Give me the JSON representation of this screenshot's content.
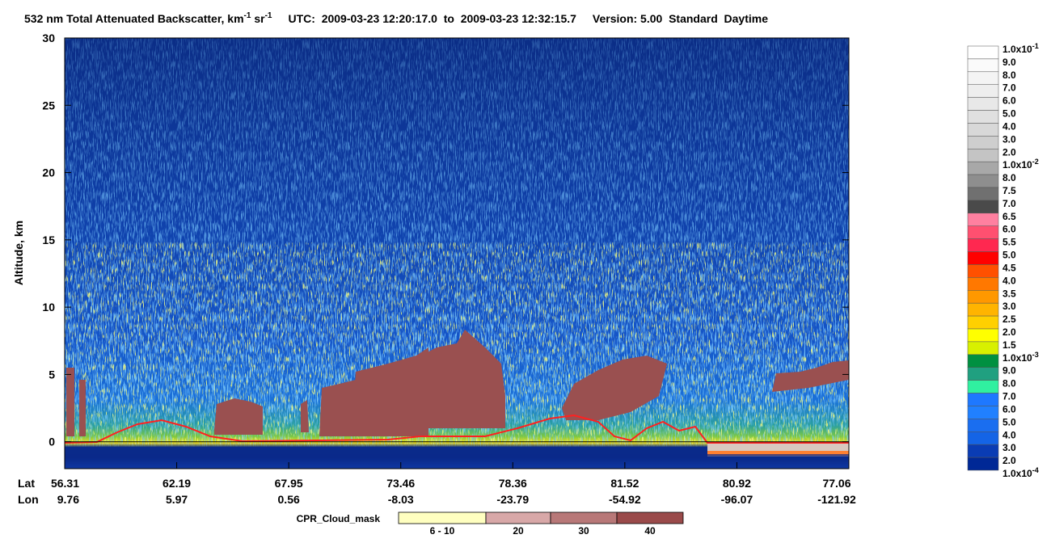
{
  "chart_data": {
    "type": "curtain",
    "title": {
      "text": "532 nm Total Attenuated Backscatter, km",
      "exp1": "-1",
      "unit2": "sr",
      "exp2": "-1"
    },
    "time_range": "UTC:  2009-03-23 12:20:17.0  to  2009-03-23 12:32:15.7",
    "version": "Version: 5.00  Standard  Daytime",
    "ylabel": "Altitude, km",
    "ylim": [
      -2,
      30
    ],
    "yticks": [
      0,
      5,
      10,
      15,
      20,
      25,
      30
    ],
    "lat_label": "Lat",
    "lon_label": "Lon",
    "lat": [
      56.31,
      62.19,
      67.95,
      73.46,
      78.36,
      81.52,
      80.92,
      77.06
    ],
    "lon": [
      9.76,
      5.97,
      0.56,
      -8.03,
      -23.79,
      -54.92,
      -96.07,
      -121.92
    ],
    "colorbar": {
      "labels": [
        {
          "label": "1.0x10",
          "exp": "-1"
        },
        {
          "label": "9.0"
        },
        {
          "label": "8.0"
        },
        {
          "label": "7.0"
        },
        {
          "label": "6.0"
        },
        {
          "label": "5.0"
        },
        {
          "label": "4.0"
        },
        {
          "label": "3.0"
        },
        {
          "label": "2.0"
        },
        {
          "label": "1.0x10",
          "exp": "-2"
        },
        {
          "label": "8.0"
        },
        {
          "label": "7.5"
        },
        {
          "label": "7.0"
        },
        {
          "label": "6.5"
        },
        {
          "label": "6.0"
        },
        {
          "label": "5.5"
        },
        {
          "label": "5.0"
        },
        {
          "label": "4.5"
        },
        {
          "label": "4.0"
        },
        {
          "label": "3.5"
        },
        {
          "label": "3.0"
        },
        {
          "label": "2.5"
        },
        {
          "label": "2.0"
        },
        {
          "label": "1.5"
        },
        {
          "label": "1.0x10",
          "exp": "-3"
        },
        {
          "label": "9.0"
        },
        {
          "label": "8.0"
        },
        {
          "label": "7.0"
        },
        {
          "label": "6.0"
        },
        {
          "label": "5.0"
        },
        {
          "label": "4.0"
        },
        {
          "label": "3.0"
        },
        {
          "label": "2.0"
        },
        {
          "label": "1.0x10",
          "exp": "-4"
        }
      ],
      "colors": [
        "#ffffff",
        "#fafafa",
        "#f4f4f4",
        "#eeeeee",
        "#e8e8e8",
        "#e0e0e0",
        "#d8d8d8",
        "#cecece",
        "#c4c4c4",
        "#a8a8a8",
        "#8e8e8e",
        "#707070",
        "#4a4a4a",
        "#ff80a0",
        "#ff5070",
        "#ff2850",
        "#ff0000",
        "#ff5000",
        "#ff7800",
        "#ff9800",
        "#ffb400",
        "#ffd000",
        "#ffff00",
        "#d8f000",
        "#009040",
        "#20a080",
        "#30f0a0",
        "#1e78ff",
        "#2080ff",
        "#1a6ef0",
        "#1464e6",
        "#0a3cb4",
        "#002896"
      ]
    },
    "cpr_legend": {
      "title": "CPR_Cloud_mask",
      "categories": [
        "6 - 10",
        "20",
        "30",
        "40"
      ],
      "colors": [
        "#ffffc0",
        "#d8a8a8",
        "#b87878",
        "#9a4a4a"
      ]
    }
  }
}
